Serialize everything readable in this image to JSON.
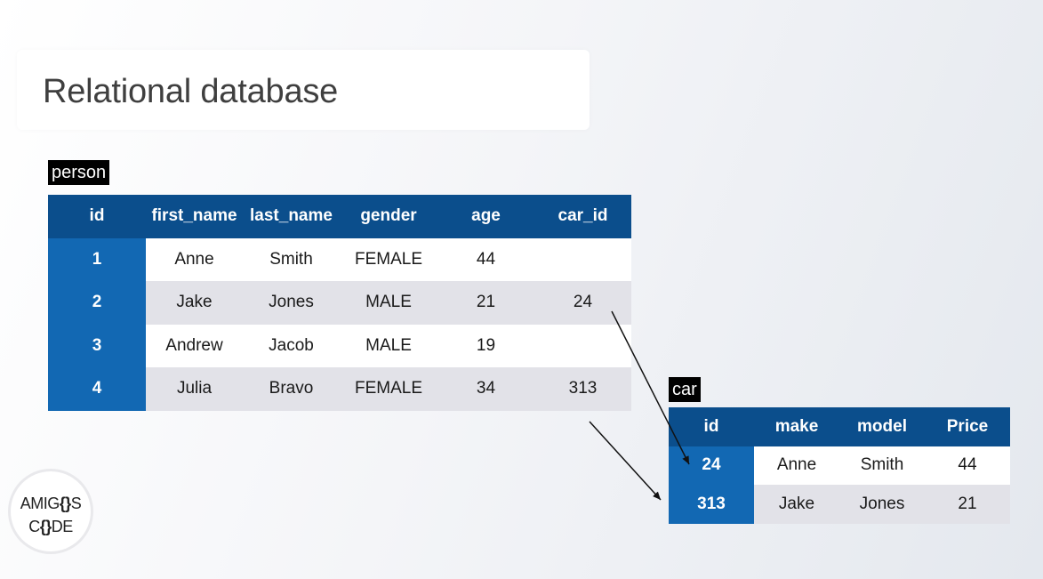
{
  "title": "Relational database",
  "person_table": {
    "label": "person",
    "columns": [
      "id",
      "first_name",
      "last_name",
      "gender",
      "age",
      "car_id"
    ],
    "rows": [
      [
        "1",
        "Anne",
        "Smith",
        "FEMALE",
        "44",
        ""
      ],
      [
        "2",
        "Jake",
        "Jones",
        "MALE",
        "21",
        "24"
      ],
      [
        "3",
        "Andrew",
        "Jacob",
        "MALE",
        "19",
        ""
      ],
      [
        "4",
        "Julia",
        "Bravo",
        "FEMALE",
        "34",
        "313"
      ]
    ]
  },
  "car_table": {
    "label": "car",
    "columns": [
      "id",
      "make",
      "model",
      "Price"
    ],
    "rows": [
      [
        "24",
        "Anne",
        "Smith",
        "44"
      ],
      [
        "313",
        "Jake",
        "Jones",
        "21"
      ]
    ]
  },
  "logo": {
    "line1": "AMIGOS",
    "line2": "CODE"
  },
  "colors": {
    "header": "#0b4e8c",
    "key_column": "#1268b3",
    "row_alt": "#e2e2e8"
  }
}
